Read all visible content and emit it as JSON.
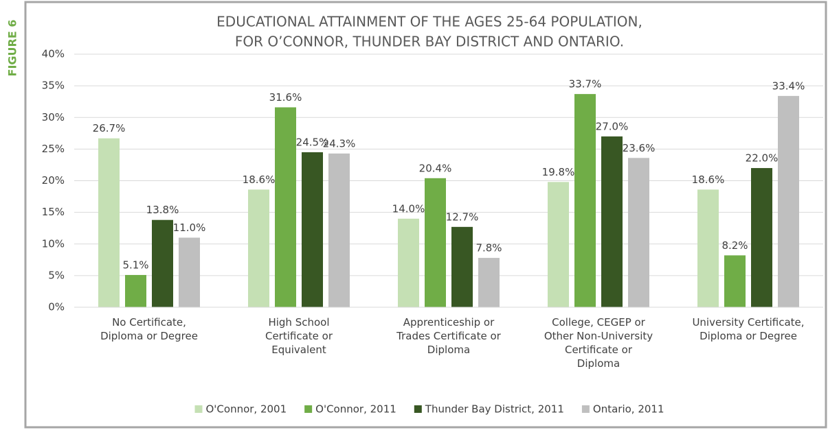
{
  "figure_label": "FIGURE 6",
  "chart_data": {
    "type": "bar",
    "title": [
      "EDUCATIONAL ATTAINMENT OF THE AGES 25-64 POPULATION,",
      "FOR O’CONNOR, THUNDER BAY DISTRICT AND ONTARIO."
    ],
    "categories": [
      "No Certificate,\nDiploma or Degree",
      "High School\nCertificate or\nEquivalent",
      "Apprenticeship or\nTrades Certificate or\nDiploma",
      "College, CEGEP or\nOther Non-University\nCertificate or\nDiploma",
      "University Certificate,\nDiploma or Degree"
    ],
    "series": [
      {
        "name": "O'Connor, 2001",
        "color": "#c5e0b4",
        "values": [
          26.7,
          18.6,
          14.0,
          19.8,
          18.6
        ],
        "value_labels": [
          "26.7%",
          "18.6%",
          "14.0%",
          "19.8%",
          "18.6%"
        ]
      },
      {
        "name": "O'Connor, 2011",
        "color": "#70ad47",
        "values": [
          5.1,
          31.6,
          20.4,
          33.7,
          8.2
        ],
        "value_labels": [
          "5.1%",
          "31.6%",
          "20.4%",
          "33.7%",
          "8.2%"
        ]
      },
      {
        "name": "Thunder Bay District, 2011",
        "color": "#385723",
        "values": [
          13.8,
          24.5,
          12.7,
          27.0,
          22.0
        ],
        "value_labels": [
          "13.8%",
          "24.5%",
          "12.7%",
          "27.0%",
          "22.0%"
        ]
      },
      {
        "name": "Ontario, 2011",
        "color": "#bfbfbf",
        "values": [
          11.0,
          24.3,
          7.8,
          23.6,
          33.4
        ],
        "value_labels": [
          "11.0%",
          "24.3%",
          "7.8%",
          "23.6%",
          "33.4%"
        ]
      }
    ],
    "ylim": [
      0,
      40
    ],
    "yticks": [
      {
        "value": 0,
        "label": "0%"
      },
      {
        "value": 5,
        "label": "5%"
      },
      {
        "value": 10,
        "label": "10%"
      },
      {
        "value": 15,
        "label": "15%"
      },
      {
        "value": 20,
        "label": "20%"
      },
      {
        "value": 25,
        "label": "25%"
      },
      {
        "value": 30,
        "label": "30%"
      },
      {
        "value": 35,
        "label": "35%"
      },
      {
        "value": 40,
        "label": "40%"
      }
    ],
    "grid": true,
    "legend": "bottom"
  }
}
